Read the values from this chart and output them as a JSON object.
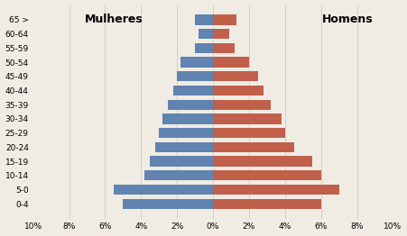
{
  "age_groups": [
    "0-4",
    "5-0",
    "10-14",
    "15-19",
    "20-24",
    "25-29",
    "30-34",
    "35-39",
    "40-44",
    "45-49",
    "50-54",
    "55-59",
    "60-64",
    "65 >"
  ],
  "females": [
    5.0,
    5.5,
    3.8,
    3.5,
    3.2,
    3.0,
    2.8,
    2.5,
    2.2,
    2.0,
    1.8,
    1.0,
    0.8,
    1.0
  ],
  "males": [
    6.0,
    7.0,
    6.0,
    5.5,
    4.5,
    4.0,
    3.8,
    3.2,
    2.8,
    2.5,
    2.0,
    1.2,
    0.9,
    1.3
  ],
  "female_color": "#6083b0",
  "male_color": "#c0604a",
  "title_female": "Mulheres",
  "title_male": "Homens",
  "xticklabels": [
    "10%",
    "8%",
    "6%",
    "4%",
    "2%",
    "0%",
    "2%",
    "4%",
    "6%",
    "8%",
    "10%"
  ],
  "background_color": "#f0ece4"
}
